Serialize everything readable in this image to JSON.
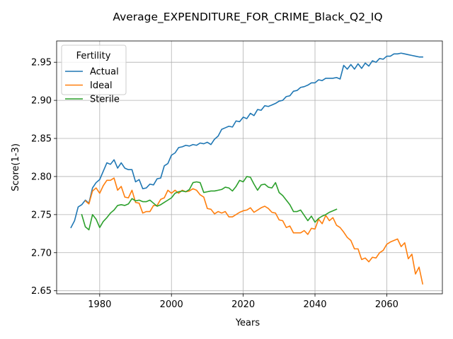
{
  "chart_data": {
    "type": "line",
    "title": "Average_EXPENDITURE_FOR_CRIME_Black_Q2_IQ",
    "xlabel": "Years",
    "ylabel": "Score(1-3)",
    "xlim": [
      1968,
      2075.5
    ],
    "ylim": [
      2.646,
      2.978
    ],
    "xticks": [
      1980,
      2000,
      2020,
      2040,
      2060
    ],
    "yticks": [
      2.65,
      2.7,
      2.75,
      2.8,
      2.85,
      2.9,
      2.95
    ],
    "ytick_labels": [
      "2.65",
      "2.70",
      "2.75",
      "2.80",
      "2.85",
      "2.90",
      "2.95"
    ],
    "grid": true,
    "legend": {
      "title": "Fertility",
      "placement": "top-left"
    },
    "series": [
      {
        "name": "Actual",
        "color": "#1f77b4",
        "x": [
          1972,
          1973,
          1974,
          1975,
          1976,
          1977,
          1978,
          1979,
          1980,
          1981,
          1982,
          1983,
          1984,
          1985,
          1986,
          1987,
          1988,
          1989,
          1990,
          1991,
          1992,
          1993,
          1994,
          1995,
          1996,
          1997,
          1998,
          1999,
          2000,
          2001,
          2002,
          2003,
          2004,
          2005,
          2006,
          2007,
          2008,
          2009,
          2010,
          2011,
          2012,
          2013,
          2014,
          2015,
          2016,
          2017,
          2018,
          2019,
          2020,
          2021,
          2022,
          2023,
          2024,
          2025,
          2026,
          2027,
          2028,
          2029,
          2030,
          2031,
          2032,
          2033,
          2034,
          2035,
          2036,
          2037,
          2038,
          2039,
          2040,
          2041,
          2042,
          2043,
          2044,
          2045,
          2046,
          2047,
          2048,
          2049,
          2050,
          2051,
          2052,
          2053,
          2054,
          2055,
          2056,
          2057,
          2058,
          2059,
          2060,
          2061,
          2062,
          2063,
          2064,
          2065,
          2066,
          2067,
          2068,
          2069,
          2070
        ],
        "values": [
          2.733,
          2.742,
          2.76,
          2.763,
          2.769,
          2.765,
          2.785,
          2.792,
          2.796,
          2.807,
          2.818,
          2.816,
          2.822,
          2.811,
          2.818,
          2.811,
          2.809,
          2.809,
          2.793,
          2.796,
          2.784,
          2.785,
          2.79,
          2.789,
          2.797,
          2.798,
          2.814,
          2.817,
          2.828,
          2.831,
          2.838,
          2.839,
          2.841,
          2.84,
          2.842,
          2.841,
          2.844,
          2.843,
          2.845,
          2.842,
          2.849,
          2.853,
          2.862,
          2.864,
          2.866,
          2.865,
          2.873,
          2.872,
          2.878,
          2.876,
          2.883,
          2.88,
          2.888,
          2.887,
          2.893,
          2.892,
          2.894,
          2.896,
          2.899,
          2.9,
          2.905,
          2.906,
          2.912,
          2.913,
          2.917,
          2.918,
          2.92,
          2.923,
          2.923,
          2.927,
          2.926,
          2.929,
          2.929,
          2.929,
          2.93,
          2.928,
          2.946,
          2.941,
          2.947,
          2.941,
          2.948,
          2.942,
          2.949,
          2.945,
          2.952,
          2.95,
          2.955,
          2.954,
          2.958,
          2.958,
          2.961,
          2.961,
          2.962,
          2.961,
          2.96,
          2.959,
          2.958,
          2.957,
          2.957
        ]
      },
      {
        "name": "Ideal",
        "color": "#ff7f0e",
        "x": [
          1976,
          1977,
          1978,
          1979,
          1980,
          1981,
          1982,
          1983,
          1984,
          1985,
          1986,
          1987,
          1988,
          1989,
          1990,
          1991,
          1992,
          1993,
          1994,
          1995,
          1996,
          1997,
          1998,
          1999,
          2000,
          2001,
          2002,
          2003,
          2004,
          2005,
          2006,
          2007,
          2008,
          2009,
          2010,
          2011,
          2012,
          2013,
          2014,
          2015,
          2016,
          2017,
          2018,
          2019,
          2020,
          2021,
          2022,
          2023,
          2024,
          2025,
          2026,
          2027,
          2028,
          2029,
          2030,
          2031,
          2032,
          2033,
          2034,
          2035,
          2036,
          2037,
          2038,
          2039,
          2040,
          2041,
          2042,
          2043,
          2044,
          2045,
          2046,
          2047,
          2048,
          2049,
          2050,
          2051,
          2052,
          2053,
          2054,
          2055,
          2056,
          2057,
          2058,
          2059,
          2060,
          2061,
          2062,
          2063,
          2064,
          2065,
          2066,
          2067,
          2068,
          2069,
          2070
        ],
        "values": [
          2.768,
          2.764,
          2.781,
          2.785,
          2.778,
          2.788,
          2.795,
          2.795,
          2.798,
          2.782,
          2.787,
          2.773,
          2.772,
          2.782,
          2.766,
          2.765,
          2.752,
          2.754,
          2.754,
          2.762,
          2.762,
          2.77,
          2.772,
          2.782,
          2.778,
          2.782,
          2.778,
          2.782,
          2.78,
          2.781,
          2.784,
          2.782,
          2.776,
          2.773,
          2.758,
          2.757,
          2.751,
          2.754,
          2.752,
          2.754,
          2.747,
          2.747,
          2.75,
          2.753,
          2.755,
          2.756,
          2.759,
          2.753,
          2.756,
          2.759,
          2.761,
          2.758,
          2.753,
          2.752,
          2.743,
          2.742,
          2.733,
          2.735,
          2.726,
          2.726,
          2.726,
          2.729,
          2.724,
          2.732,
          2.731,
          2.744,
          2.738,
          2.749,
          2.742,
          2.746,
          2.736,
          2.733,
          2.727,
          2.72,
          2.716,
          2.705,
          2.705,
          2.691,
          2.693,
          2.688,
          2.694,
          2.693,
          2.7,
          2.703,
          2.711,
          2.714,
          2.716,
          2.718,
          2.708,
          2.713,
          2.692,
          2.698,
          2.672,
          2.681,
          2.659
        ]
      },
      {
        "name": "Sterile",
        "color": "#2ca02c",
        "x": [
          1975,
          1976,
          1977,
          1978,
          1979,
          1980,
          1981,
          1982,
          1983,
          1984,
          1985,
          1986,
          1987,
          1988,
          1989,
          1990,
          1991,
          1992,
          1993,
          1994,
          1995,
          1996,
          1997,
          1998,
          1999,
          2000,
          2001,
          2002,
          2003,
          2004,
          2005,
          2006,
          2007,
          2008,
          2009,
          2010,
          2011,
          2012,
          2013,
          2014,
          2015,
          2016,
          2017,
          2018,
          2019,
          2020,
          2021,
          2022,
          2023,
          2024,
          2025,
          2026,
          2027,
          2028,
          2029,
          2030,
          2031,
          2032,
          2033,
          2034,
          2035,
          2036,
          2037,
          2038,
          2039,
          2040,
          2041,
          2042,
          2043,
          2044,
          2045,
          2046
        ],
        "values": [
          2.75,
          2.734,
          2.73,
          2.75,
          2.744,
          2.733,
          2.741,
          2.746,
          2.752,
          2.756,
          2.762,
          2.763,
          2.762,
          2.764,
          2.771,
          2.768,
          2.769,
          2.767,
          2.767,
          2.769,
          2.765,
          2.761,
          2.763,
          2.766,
          2.769,
          2.772,
          2.778,
          2.78,
          2.781,
          2.78,
          2.783,
          2.792,
          2.793,
          2.792,
          2.779,
          2.78,
          2.781,
          2.781,
          2.782,
          2.783,
          2.786,
          2.785,
          2.781,
          2.787,
          2.795,
          2.793,
          2.8,
          2.799,
          2.79,
          2.782,
          2.789,
          2.79,
          2.786,
          2.785,
          2.792,
          2.779,
          2.775,
          2.769,
          2.763,
          2.754,
          2.754,
          2.756,
          2.749,
          2.742,
          2.748,
          2.74,
          2.745,
          2.748,
          2.75,
          2.753,
          2.755,
          2.757
        ]
      }
    ]
  }
}
